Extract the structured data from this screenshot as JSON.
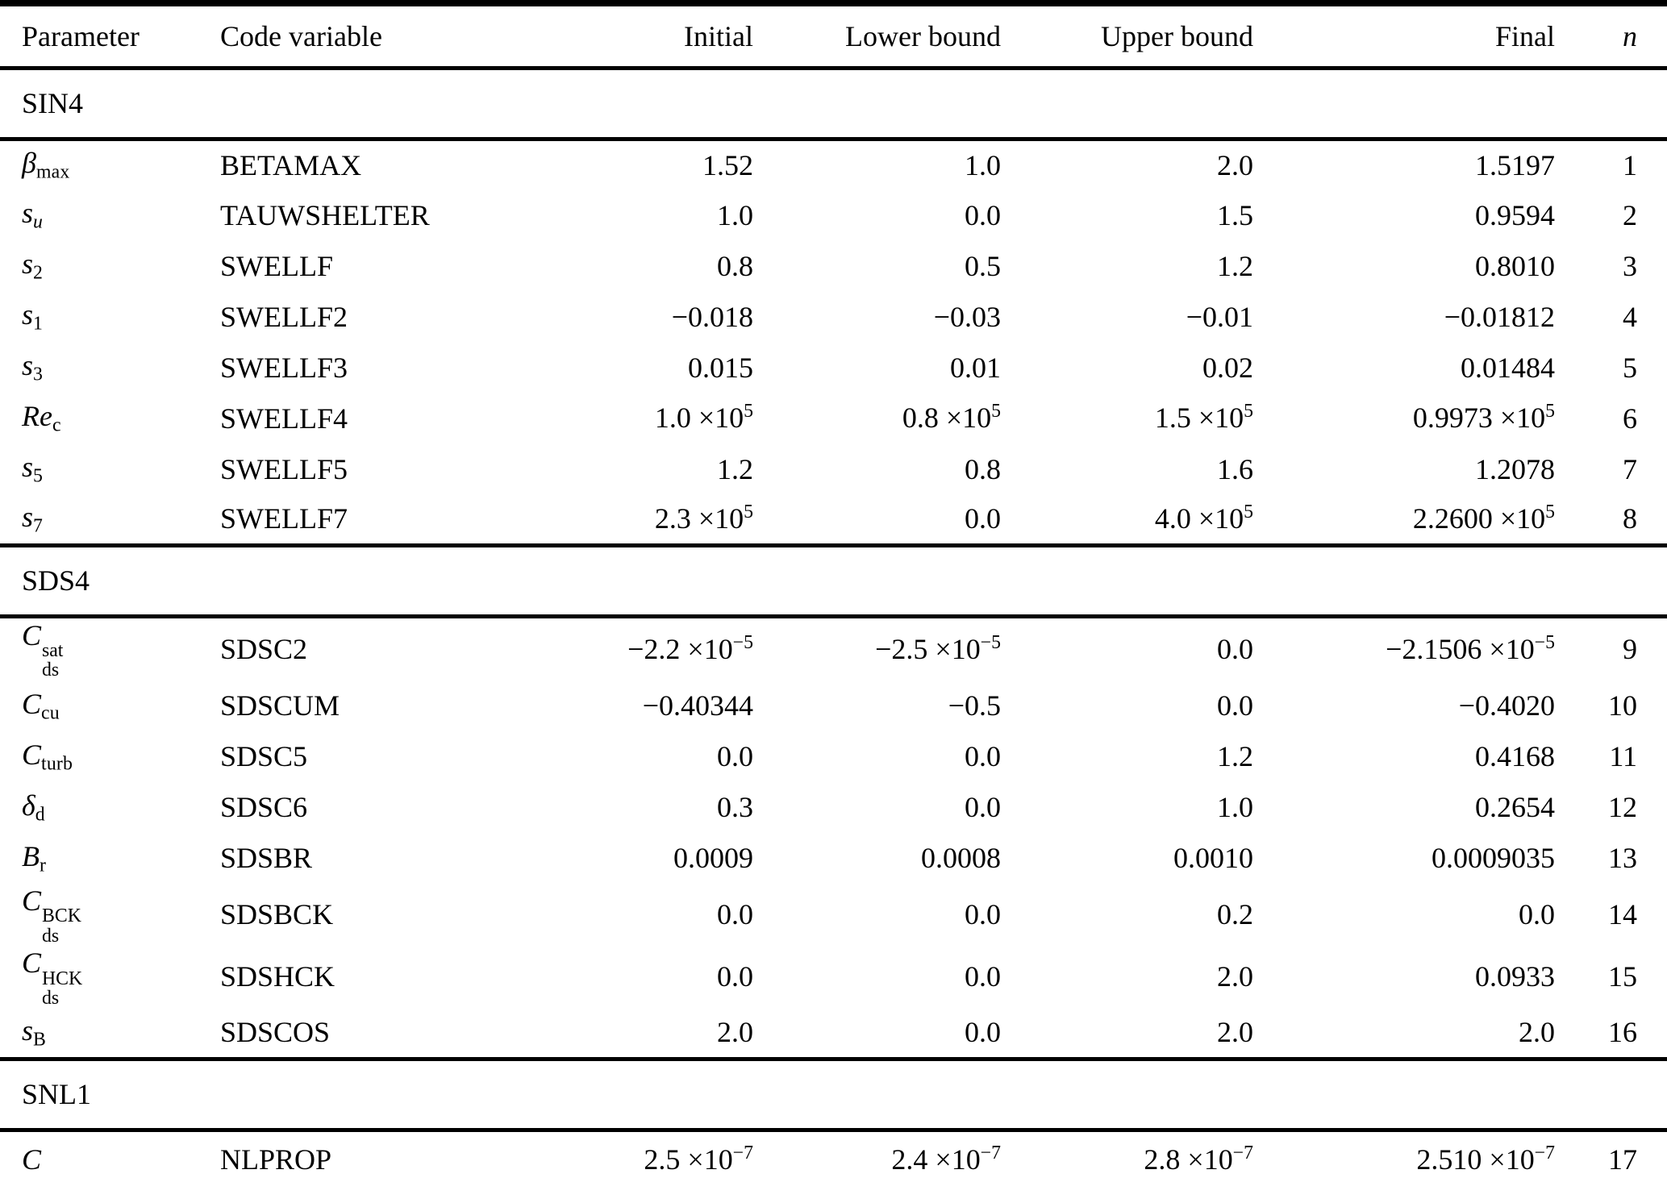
{
  "table": {
    "columns": [
      "Parameter",
      "Code variable",
      "Initial",
      "Lower bound",
      "Upper bound",
      "Final",
      "n"
    ],
    "sections": [
      {
        "label": "SIN4",
        "rows": [
          {
            "sym": {
              "base": "β",
              "sub": "max"
            },
            "code": "BETAMAX",
            "initial": "1.52",
            "lower": "1.0",
            "upper": "2.0",
            "final": "1.5197",
            "n": "1"
          },
          {
            "sym": {
              "base": "s",
              "sub": "u",
              "sub_italic": true
            },
            "code": "TAUWSHELTER",
            "initial": "1.0",
            "lower": "0.0",
            "upper": "1.5",
            "final": "0.9594",
            "n": "2"
          },
          {
            "sym": {
              "base": "s",
              "sub": "2"
            },
            "code": "SWELLF",
            "initial": "0.8",
            "lower": "0.5",
            "upper": "1.2",
            "final": "0.8010",
            "n": "3"
          },
          {
            "sym": {
              "base": "s",
              "sub": "1"
            },
            "code": "SWELLF2",
            "initial": "−0.018",
            "lower": "−0.03",
            "upper": "−0.01",
            "final": "−0.01812",
            "n": "4"
          },
          {
            "sym": {
              "base": "s",
              "sub": "3"
            },
            "code": "SWELLF3",
            "initial": "0.015",
            "lower": "0.01",
            "upper": "0.02",
            "final": "0.01484",
            "n": "5"
          },
          {
            "sym": {
              "base": "Re",
              "sub": "c"
            },
            "code": "SWELLF4",
            "initial": "1.0 ×10^5",
            "lower": "0.8 ×10^5",
            "upper": "1.5 ×10^5",
            "final": "0.9973 ×10^5",
            "n": "6"
          },
          {
            "sym": {
              "base": "s",
              "sub": "5"
            },
            "code": "SWELLF5",
            "initial": "1.2",
            "lower": "0.8",
            "upper": "1.6",
            "final": "1.2078",
            "n": "7"
          },
          {
            "sym": {
              "base": "s",
              "sub": "7"
            },
            "code": "SWELLF7",
            "initial": "2.3 ×10^5",
            "lower": "0.0",
            "upper": "4.0 ×10^5",
            "final": "2.2600 ×10^5",
            "n": "8"
          }
        ]
      },
      {
        "label": "SDS4",
        "rows": [
          {
            "sym": {
              "base": "C",
              "sub": "ds",
              "sup": "sat"
            },
            "code": "SDSC2",
            "initial": "−2.2 ×10^−5",
            "lower": "−2.5 ×10^−5",
            "upper": "0.0",
            "final": "−2.1506 ×10^−5",
            "n": "9"
          },
          {
            "sym": {
              "base": "C",
              "sub": "cu"
            },
            "code": "SDSCUM",
            "initial": "−0.40344",
            "lower": "−0.5",
            "upper": "0.0",
            "final": "−0.4020",
            "n": "10"
          },
          {
            "sym": {
              "base": "C",
              "sub": "turb"
            },
            "code": "SDSC5",
            "initial": "0.0",
            "lower": "0.0",
            "upper": "1.2",
            "final": "0.4168",
            "n": "11"
          },
          {
            "sym": {
              "base": "δ",
              "sub": "d"
            },
            "code": "SDSC6",
            "initial": "0.3",
            "lower": "0.0",
            "upper": "1.0",
            "final": "0.2654",
            "n": "12"
          },
          {
            "sym": {
              "base": "B",
              "sub": "r"
            },
            "code": "SDSBR",
            "initial": "0.0009",
            "lower": "0.0008",
            "upper": "0.0010",
            "final": "0.0009035",
            "n": "13"
          },
          {
            "sym": {
              "base": "C",
              "sub": "ds",
              "sup": "BCK"
            },
            "code": "SDSBCK",
            "initial": "0.0",
            "lower": "0.0",
            "upper": "0.2",
            "final": "0.0",
            "n": "14"
          },
          {
            "sym": {
              "base": "C",
              "sub": "ds",
              "sup": "HCK"
            },
            "code": "SDSHCK",
            "initial": "0.0",
            "lower": "0.0",
            "upper": "2.0",
            "final": "0.0933",
            "n": "15"
          },
          {
            "sym": {
              "base": "s",
              "sub": "B"
            },
            "code": "SDSCOS",
            "initial": "2.0",
            "lower": "0.0",
            "upper": "2.0",
            "final": "2.0",
            "n": "16"
          }
        ]
      },
      {
        "label": "SNL1",
        "rows": [
          {
            "sym": {
              "base": "C"
            },
            "code": "NLPROP",
            "initial": "2.5 ×10^−7",
            "lower": "2.4 ×10^−7",
            "upper": "2.8 ×10^−7",
            "final": "2.510 ×10^−7",
            "n": "17"
          }
        ]
      }
    ]
  }
}
